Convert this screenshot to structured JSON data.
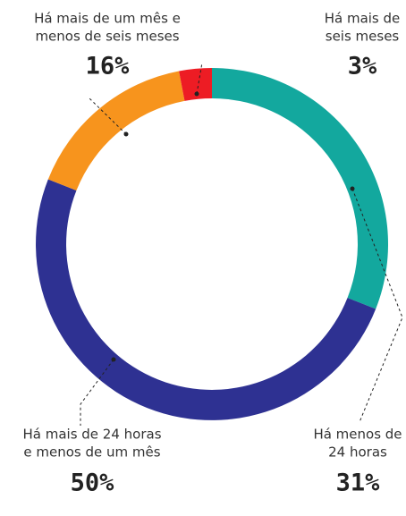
{
  "chart_data": {
    "type": "donut",
    "categories": [
      [
        "Há menos de",
        "24 horas"
      ],
      [
        "Há mais de 24 horas",
        "e menos de um mês"
      ],
      [
        "Há mais de um mês e",
        "menos de seis meses"
      ],
      [
        "Há mais de",
        "seis meses"
      ]
    ],
    "values": [
      31,
      50,
      16,
      3
    ],
    "value_labels": [
      "31%",
      "50%",
      "16%",
      "3%"
    ],
    "colors": [
      "#13a89e",
      "#2e3192",
      "#f7941d",
      "#ed1c24"
    ]
  }
}
